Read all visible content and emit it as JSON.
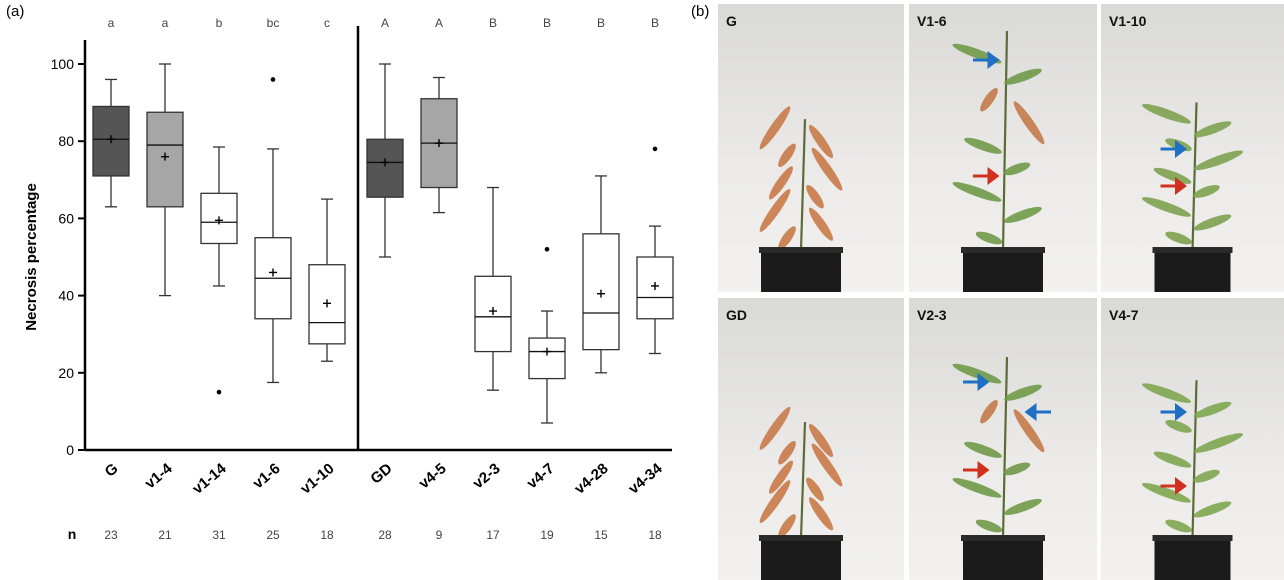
{
  "chart_data": {
    "type": "box",
    "panel_label": "(a)",
    "ylabel": "Necrosis percentage",
    "ylim": [
      0,
      100
    ],
    "yticks": [
      0,
      20,
      40,
      60,
      80,
      100
    ],
    "n_label": "n",
    "groups": [
      {
        "boxes": [
          {
            "category": "G",
            "letter": "a",
            "n": 23,
            "color": "#555555",
            "whislo": 63,
            "q1": 71,
            "med": 80.5,
            "q3": 89,
            "whishi": 96,
            "mean": 80.5,
            "fliers": []
          },
          {
            "category": "v1-4",
            "letter": "a",
            "n": 21,
            "color": "#a6a6a6",
            "whislo": 40,
            "q1": 63,
            "med": 79,
            "q3": 87.5,
            "whishi": 100,
            "mean": 76,
            "fliers": []
          },
          {
            "category": "v1-14",
            "letter": "b",
            "n": 31,
            "color": "#ffffff",
            "whislo": 42.5,
            "q1": 53.5,
            "med": 59,
            "q3": 66.5,
            "whishi": 78.5,
            "mean": 59.5,
            "fliers": [
              15
            ]
          },
          {
            "category": "v1-6",
            "letter": "bc",
            "n": 25,
            "color": "#ffffff",
            "whislo": 17.5,
            "q1": 34,
            "med": 44.5,
            "q3": 55,
            "whishi": 78,
            "mean": 46,
            "fliers": [
              96
            ]
          },
          {
            "category": "v1-10",
            "letter": "c",
            "n": 18,
            "color": "#ffffff",
            "whislo": 23,
            "q1": 27.5,
            "med": 33,
            "q3": 48,
            "whishi": 65,
            "mean": 38,
            "fliers": []
          }
        ]
      },
      {
        "boxes": [
          {
            "category": "GD",
            "letter": "A",
            "n": 28,
            "color": "#555555",
            "whislo": 50,
            "q1": 65.5,
            "med": 74.5,
            "q3": 80.5,
            "whishi": 100,
            "mean": 74.5,
            "fliers": []
          },
          {
            "category": "v4-5",
            "letter": "A",
            "n": 9,
            "color": "#a6a6a6",
            "whislo": 61.5,
            "q1": 68,
            "med": 79.5,
            "q3": 91,
            "whishi": 96.5,
            "mean": 79.5,
            "fliers": []
          },
          {
            "category": "v2-3",
            "letter": "B",
            "n": 17,
            "color": "#ffffff",
            "whislo": 15.5,
            "q1": 25.5,
            "med": 34.5,
            "q3": 45,
            "whishi": 68,
            "mean": 36,
            "fliers": []
          },
          {
            "category": "v4-7",
            "letter": "B",
            "n": 19,
            "color": "#ffffff",
            "whislo": 7,
            "q1": 18.5,
            "med": 25.5,
            "q3": 29,
            "whishi": 36,
            "mean": 25.5,
            "fliers": [
              52
            ]
          },
          {
            "category": "v4-28",
            "letter": "B",
            "n": 15,
            "color": "#ffffff",
            "whislo": 20,
            "q1": 26,
            "med": 35.5,
            "q3": 56,
            "whishi": 71,
            "mean": 40.5,
            "fliers": []
          },
          {
            "category": "v4-34",
            "letter": "B",
            "n": 18,
            "color": "#ffffff",
            "whislo": 25,
            "q1": 34,
            "med": 39.5,
            "q3": 50,
            "whishi": 58,
            "mean": 42.5,
            "fliers": [
              78
            ]
          }
        ]
      }
    ]
  },
  "figure_b": {
    "panel_label": "(b)",
    "photos": [
      "G",
      "V1-6",
      "V1-10",
      "GD",
      "V2-3",
      "V4-7"
    ]
  }
}
